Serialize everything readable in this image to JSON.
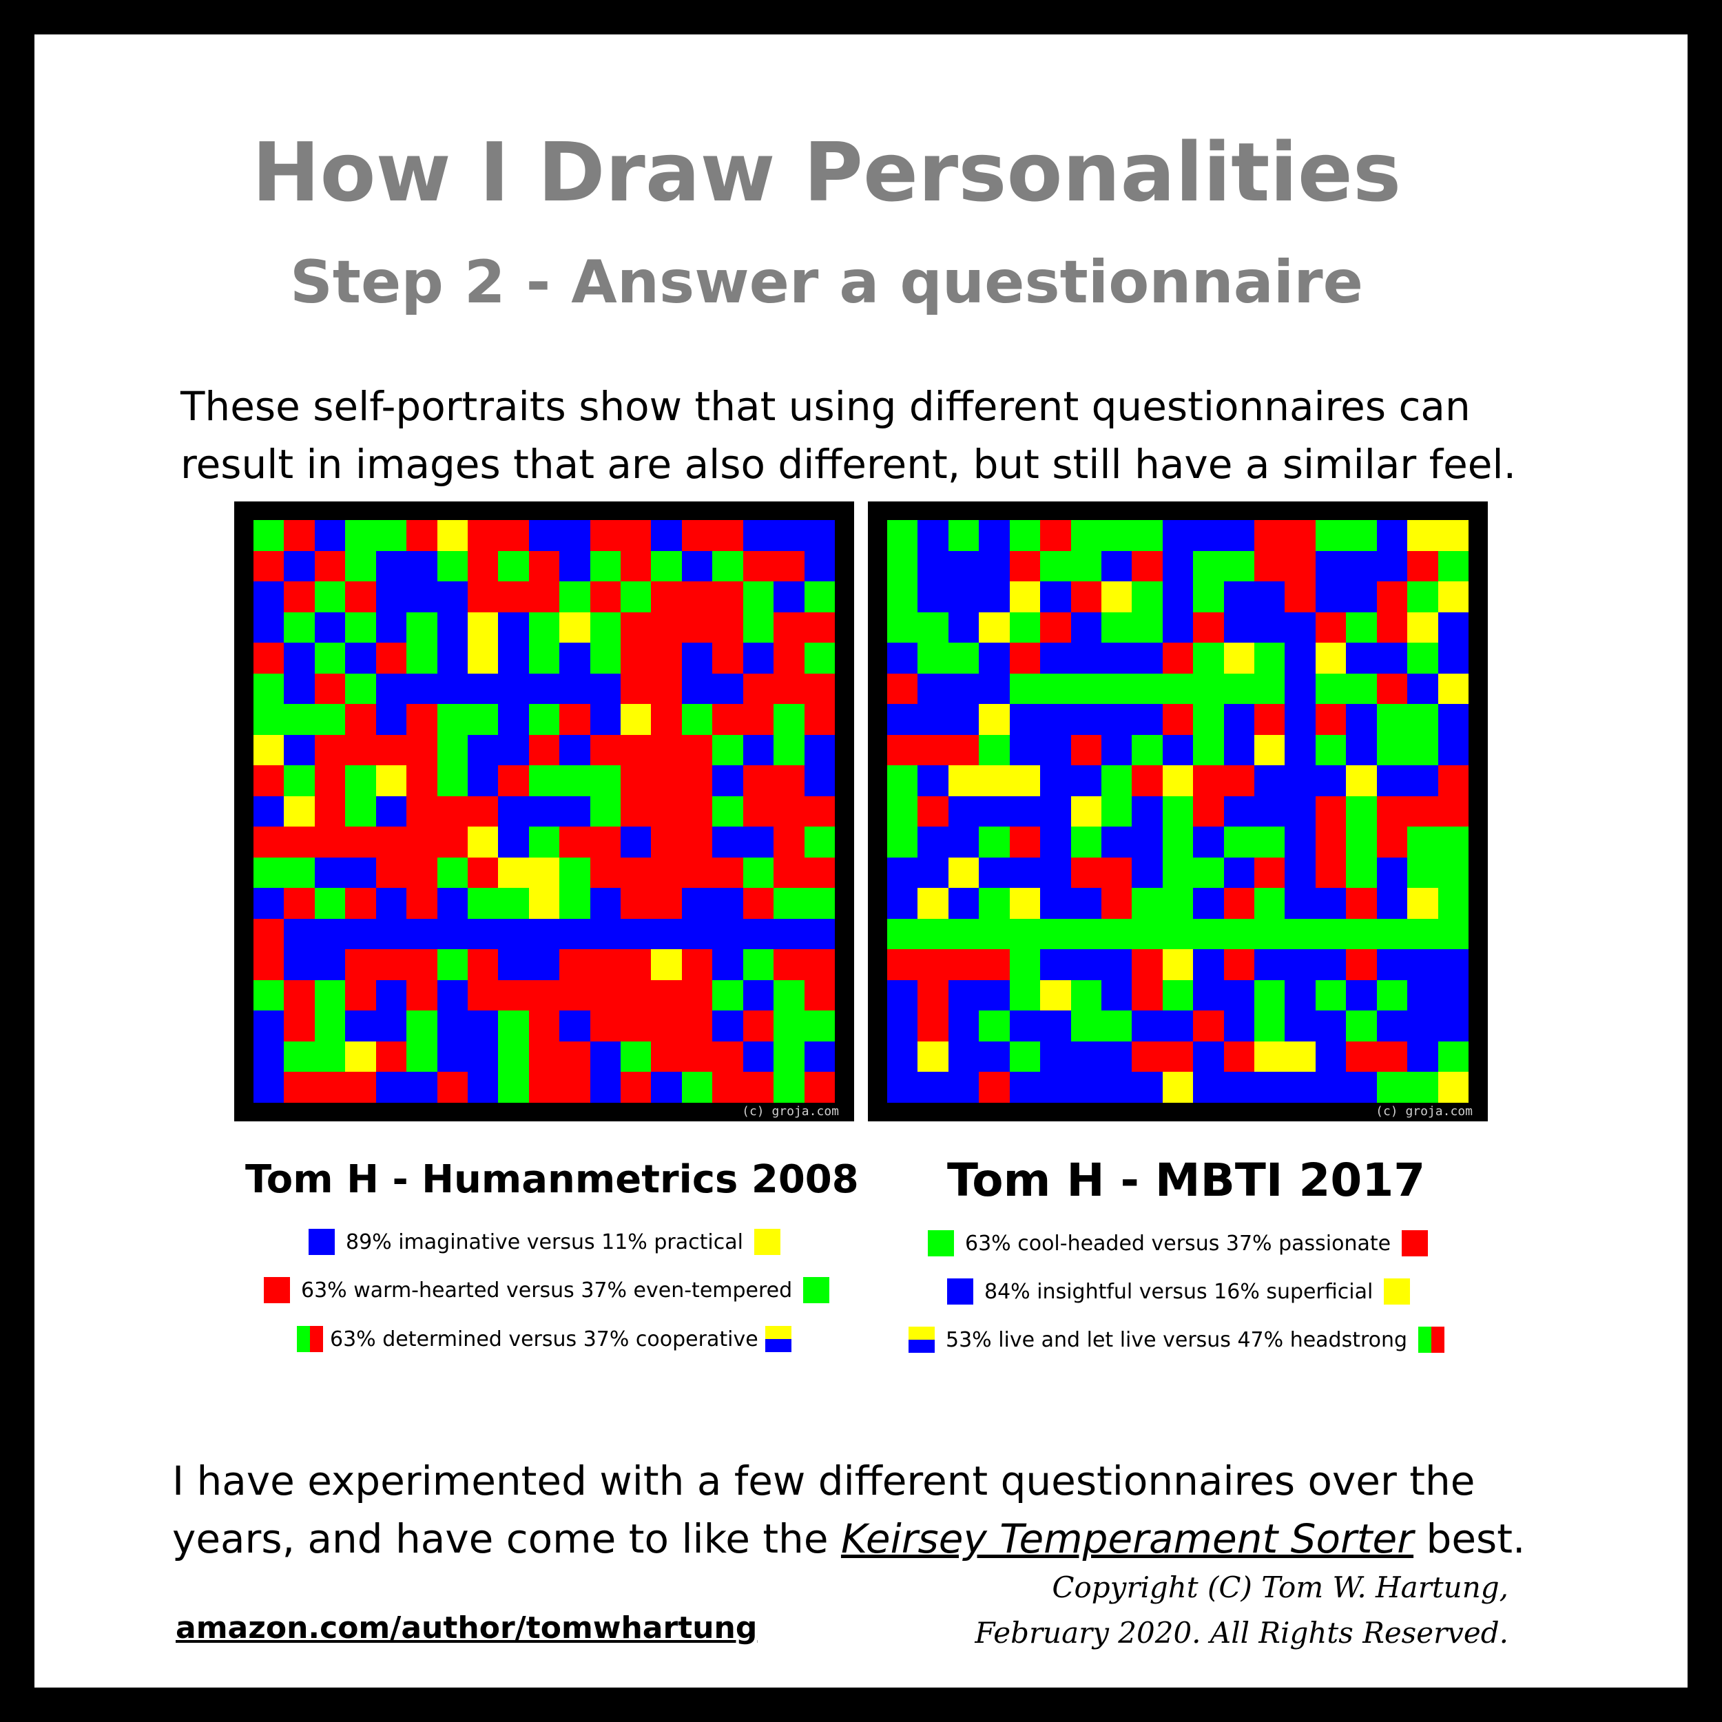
{
  "header": {
    "title": "How I Draw Personalities",
    "subtitle": "Step 2 - Answer a questionnaire"
  },
  "intro": {
    "line1": "These self-portraits show that using different questionnaires can",
    "line2": "result in images that are also different, but still have a similar feel."
  },
  "colors": {
    "B": "#0000ff",
    "R": "#ff0000",
    "G": "#00ff00",
    "Y": "#ffff00",
    "frame": "#000000"
  },
  "portraits": [
    {
      "title": "Tom H - Humanmetrics 2008",
      "watermark": "(c) groja.com",
      "grid": [
        "GRBGGRYRRBBRRBRRBBB",
        "RBRGBBGRGRBGRGBGRRB",
        "BRGRBBBRRRGRGRRRGBG",
        "BGBGBGBYBGYGRRRRGRR",
        "RBGBRGBYBGBGRRBRBRG",
        "GBRGBBBBBBBBRRBBRRR",
        "GGGRBRGGBGRBYRGRRGR",
        "YBRRRRGBBRBRRRRGBGB",
        "RGRGYRGBRGGGRRRBRRB",
        "BYRGBRRRBBBGRRRGRRR",
        "RRRRRRRYBGRRBRRBBRG",
        "GGBBRRGRYYGRRRRRGRR",
        "BRGRBRBGGYGBRRBBRGG",
        "RBBBBBBBBBBBBBBBBBB",
        "RBBRRRGRBBRRRYRBGRR",
        "GRGRBRBRRRRRRRRGBGR",
        "BRGBBGBBGRBRRRRBRGG",
        "BGGYRGBBGRRBGRRRBGB",
        "BRRRBBRBGRRBRBGRRGR"
      ]
    },
    {
      "title": "Tom H - MBTI 2017",
      "watermark": "(c) groja.com",
      "grid": [
        "GBGBGRGGGBBBRRGGBYY",
        "GBBBRGGBRBGGRRBBBRG",
        "GBBBYBRYGBGBBRBBRGY",
        "GGBYGRBGGBRBBBRGRYB",
        "BGGBRBBBBRGYGBYBBGB",
        "RBBBGGGGGGGGGBGGRBY",
        "BBBYBBBBBRGBRBRBGGB",
        "RRRGBBRBGBGBYBGBGGB",
        "GBYYYBBGRYRRBBBYBBR",
        "GRBBBBYGBGRBBBRGRRR",
        "GBBGRBGBBGBGGBRGRGG",
        "BBYBBBRRBGGBRBRGBGG",
        "BYBGYBBRGGBRGBBRBYG",
        "GGGGGGGGGGGGGGGGGGG",
        "RRRRGBBBRYBRBBBRBBB",
        "BRBBGYGBRGBBGBGBGBB",
        "BRBGBBGGBBRBGBBGBBB",
        "BYBBGBBBRRBRYYBRRBG",
        "BBBRBBBBBYBBBBBBGGY"
      ]
    }
  ],
  "legends": {
    "left": [
      {
        "text": "89% imaginative versus 11% practical"
      },
      {
        "text": "63% warm-hearted versus 37% even-tempered"
      },
      {
        "text": "63% determined versus 37% cooperative"
      }
    ],
    "right": [
      {
        "text": "63% cool-headed versus 37% passionate"
      },
      {
        "text": "84% insightful versus 16% superficial"
      },
      {
        "text": "53% live and let live versus 47% headstrong"
      }
    ]
  },
  "outro": {
    "line1": "I have experimented with a few different questionnaires over the",
    "line2_prefix": "years, and have come to like the ",
    "line2_link": "Keirsey Temperament Sorter",
    "line2_suffix": " best."
  },
  "footer": {
    "author_link": "amazon.com/author/tomwhartung",
    "copyright_line1": "Copyright (C) Tom W. Hartung,",
    "copyright_line2": "February 2020. All Rights Reserved."
  }
}
